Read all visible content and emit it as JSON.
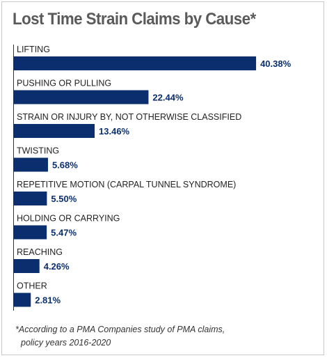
{
  "chart_data": {
    "type": "bar",
    "orientation": "horizontal",
    "title": "Lost Time Strain Claims by Cause*",
    "categories": [
      "LIFTING",
      "PUSHING OR PULLING",
      "STRAIN OR INJURY BY, NOT OTHERWISE CLASSIFIED",
      "TWISTING",
      "REPETITIVE MOTION (CARPAL TUNNEL SYNDROME)",
      "HOLDING OR CARRYING",
      "REACHING",
      "OTHER"
    ],
    "values": [
      40.38,
      22.44,
      13.46,
      5.68,
      5.5,
      5.47,
      4.26,
      2.81
    ],
    "value_labels": [
      "40.38%",
      "22.44%",
      "13.46%",
      "5.68%",
      "5.50%",
      "5.47%",
      "4.26%",
      "2.81%"
    ],
    "units": "%",
    "bar_color": "#0b2f6e",
    "label_color": "#0b2f6e",
    "grid": false
  },
  "footnote": {
    "line1": "*According to a PMA Companies study of PMA claims,",
    "line2": "policy years 2016-2020"
  }
}
